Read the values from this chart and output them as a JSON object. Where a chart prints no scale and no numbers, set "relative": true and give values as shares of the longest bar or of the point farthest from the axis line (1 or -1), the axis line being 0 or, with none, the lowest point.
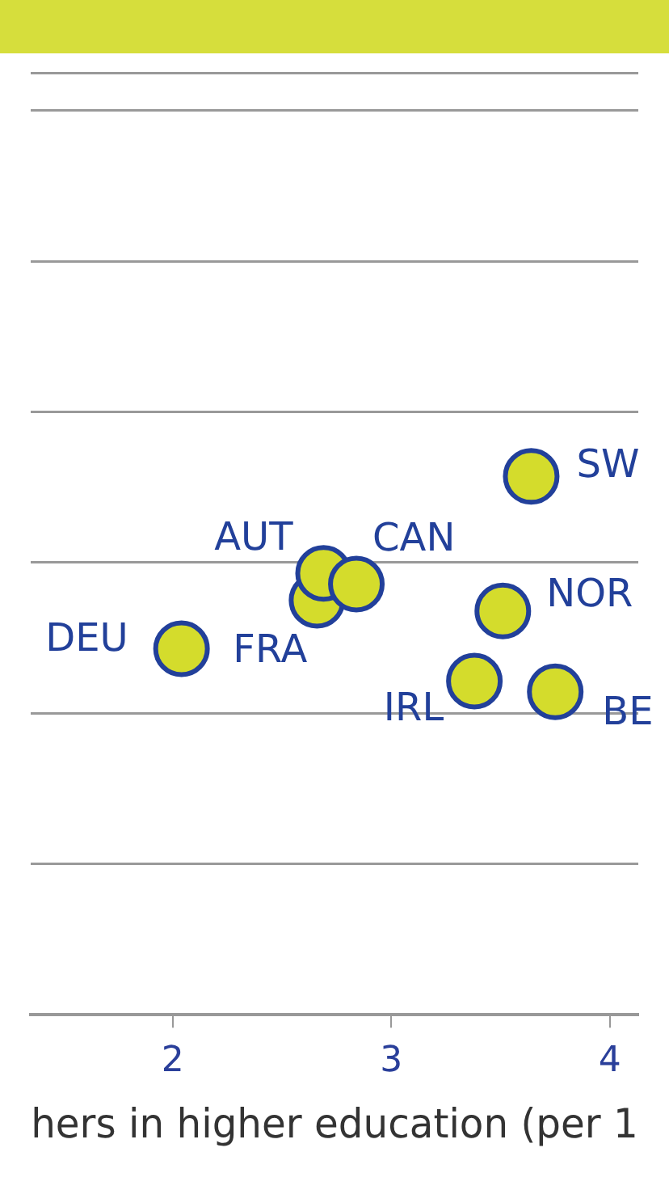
{
  "chart_data": {
    "type": "scatter",
    "relative": true,
    "xlabel": "hers in higher education (per 1",
    "x": [
      2.04,
      2.66,
      2.69,
      2.84,
      3.51,
      3.38,
      3.75,
      3.64
    ],
    "values": [
      0.68,
      0.77,
      0.82,
      0.8,
      0.75,
      0.62,
      0.6,
      1
    ],
    "color": "#d4dc2c",
    "marker": "circle",
    "grid": "y",
    "legend": false,
    "xlim": [
      1.35,
      4.13
    ],
    "xticks": [
      2,
      3,
      4
    ],
    "annotations": [
      {
        "text": "DEU",
        "x": 2.04,
        "y": 0.68
      },
      {
        "text": "FRA",
        "x": 2.66,
        "y": 0.77
      },
      {
        "text": "AUT",
        "x": 2.69,
        "y": 0.82
      },
      {
        "text": "CAN",
        "x": 2.84,
        "y": 0.8
      },
      {
        "text": "NOR",
        "x": 3.51,
        "y": 0.75
      },
      {
        "text": "IRL",
        "x": 3.38,
        "y": 0.62
      },
      {
        "text": "BE",
        "x": 3.75,
        "y": 0.6
      },
      {
        "text": "SW",
        "x": 3.64,
        "y": 1
      }
    ]
  }
}
